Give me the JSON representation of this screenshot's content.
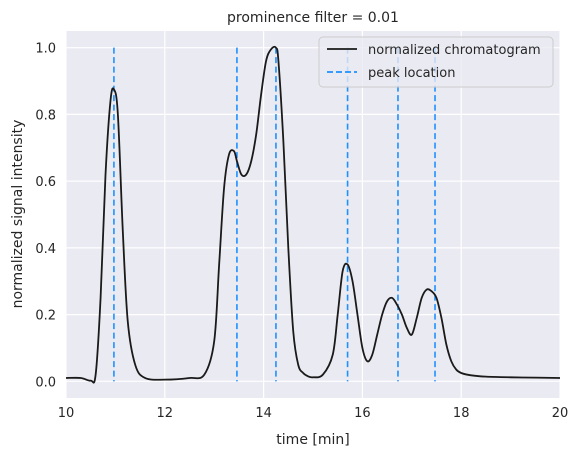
{
  "chart_data": {
    "type": "line",
    "title": "prominence filter = 0.01",
    "xlabel": "time [min]",
    "ylabel": "normalized signal intensity",
    "xlim": [
      10,
      20
    ],
    "ylim": [
      -0.05,
      1.05
    ],
    "xticks": [
      10,
      12,
      14,
      16,
      18,
      20
    ],
    "xtick_labels": [
      "10",
      "12",
      "14",
      "16",
      "18",
      "20"
    ],
    "yticks": [
      0.0,
      0.2,
      0.4,
      0.6,
      0.8,
      1.0
    ],
    "ytick_labels": [
      "0.0",
      "0.2",
      "0.4",
      "0.6",
      "0.8",
      "1.0"
    ],
    "grid": true,
    "background": "#eaeaf2",
    "legend_position": "top-right",
    "series": [
      {
        "name": "normalized chromatogram",
        "color": "#1a1a1a",
        "style": "solid",
        "x": [
          10.0,
          10.3,
          10.5,
          10.6,
          10.7,
          10.8,
          10.9,
          10.97,
          11.05,
          11.15,
          11.25,
          11.4,
          11.6,
          12.0,
          12.5,
          12.8,
          13.0,
          13.1,
          13.2,
          13.3,
          13.4,
          13.46,
          13.55,
          13.65,
          13.75,
          13.85,
          13.95,
          14.05,
          14.15,
          14.25,
          14.3,
          14.4,
          14.5,
          14.6,
          14.7,
          14.8,
          14.9,
          15.0,
          15.2,
          15.4,
          15.5,
          15.6,
          15.7,
          15.8,
          15.9,
          16.0,
          16.1,
          16.2,
          16.3,
          16.4,
          16.5,
          16.6,
          16.7,
          16.8,
          16.9,
          17.0,
          17.1,
          17.2,
          17.3,
          17.4,
          17.5,
          17.6,
          17.7,
          17.8,
          17.9,
          18.0,
          18.2,
          18.5,
          19.0,
          19.5,
          20.0
        ],
        "y": [
          0.01,
          0.01,
          0.002,
          0.02,
          0.25,
          0.62,
          0.84,
          0.875,
          0.8,
          0.45,
          0.18,
          0.05,
          0.01,
          0.005,
          0.01,
          0.02,
          0.12,
          0.35,
          0.58,
          0.68,
          0.69,
          0.66,
          0.62,
          0.62,
          0.66,
          0.74,
          0.86,
          0.96,
          0.995,
          1.0,
          0.96,
          0.72,
          0.4,
          0.15,
          0.05,
          0.025,
          0.015,
          0.012,
          0.02,
          0.08,
          0.2,
          0.33,
          0.35,
          0.3,
          0.2,
          0.1,
          0.06,
          0.08,
          0.14,
          0.2,
          0.24,
          0.25,
          0.23,
          0.2,
          0.16,
          0.14,
          0.19,
          0.25,
          0.275,
          0.27,
          0.25,
          0.19,
          0.11,
          0.06,
          0.035,
          0.025,
          0.018,
          0.014,
          0.012,
          0.011,
          0.01
        ]
      }
    ],
    "peak_series": {
      "name": "peak location",
      "color": "#1e90ff",
      "style": "dashed",
      "x": [
        10.97,
        13.46,
        14.25,
        15.7,
        16.72,
        17.47
      ]
    }
  }
}
